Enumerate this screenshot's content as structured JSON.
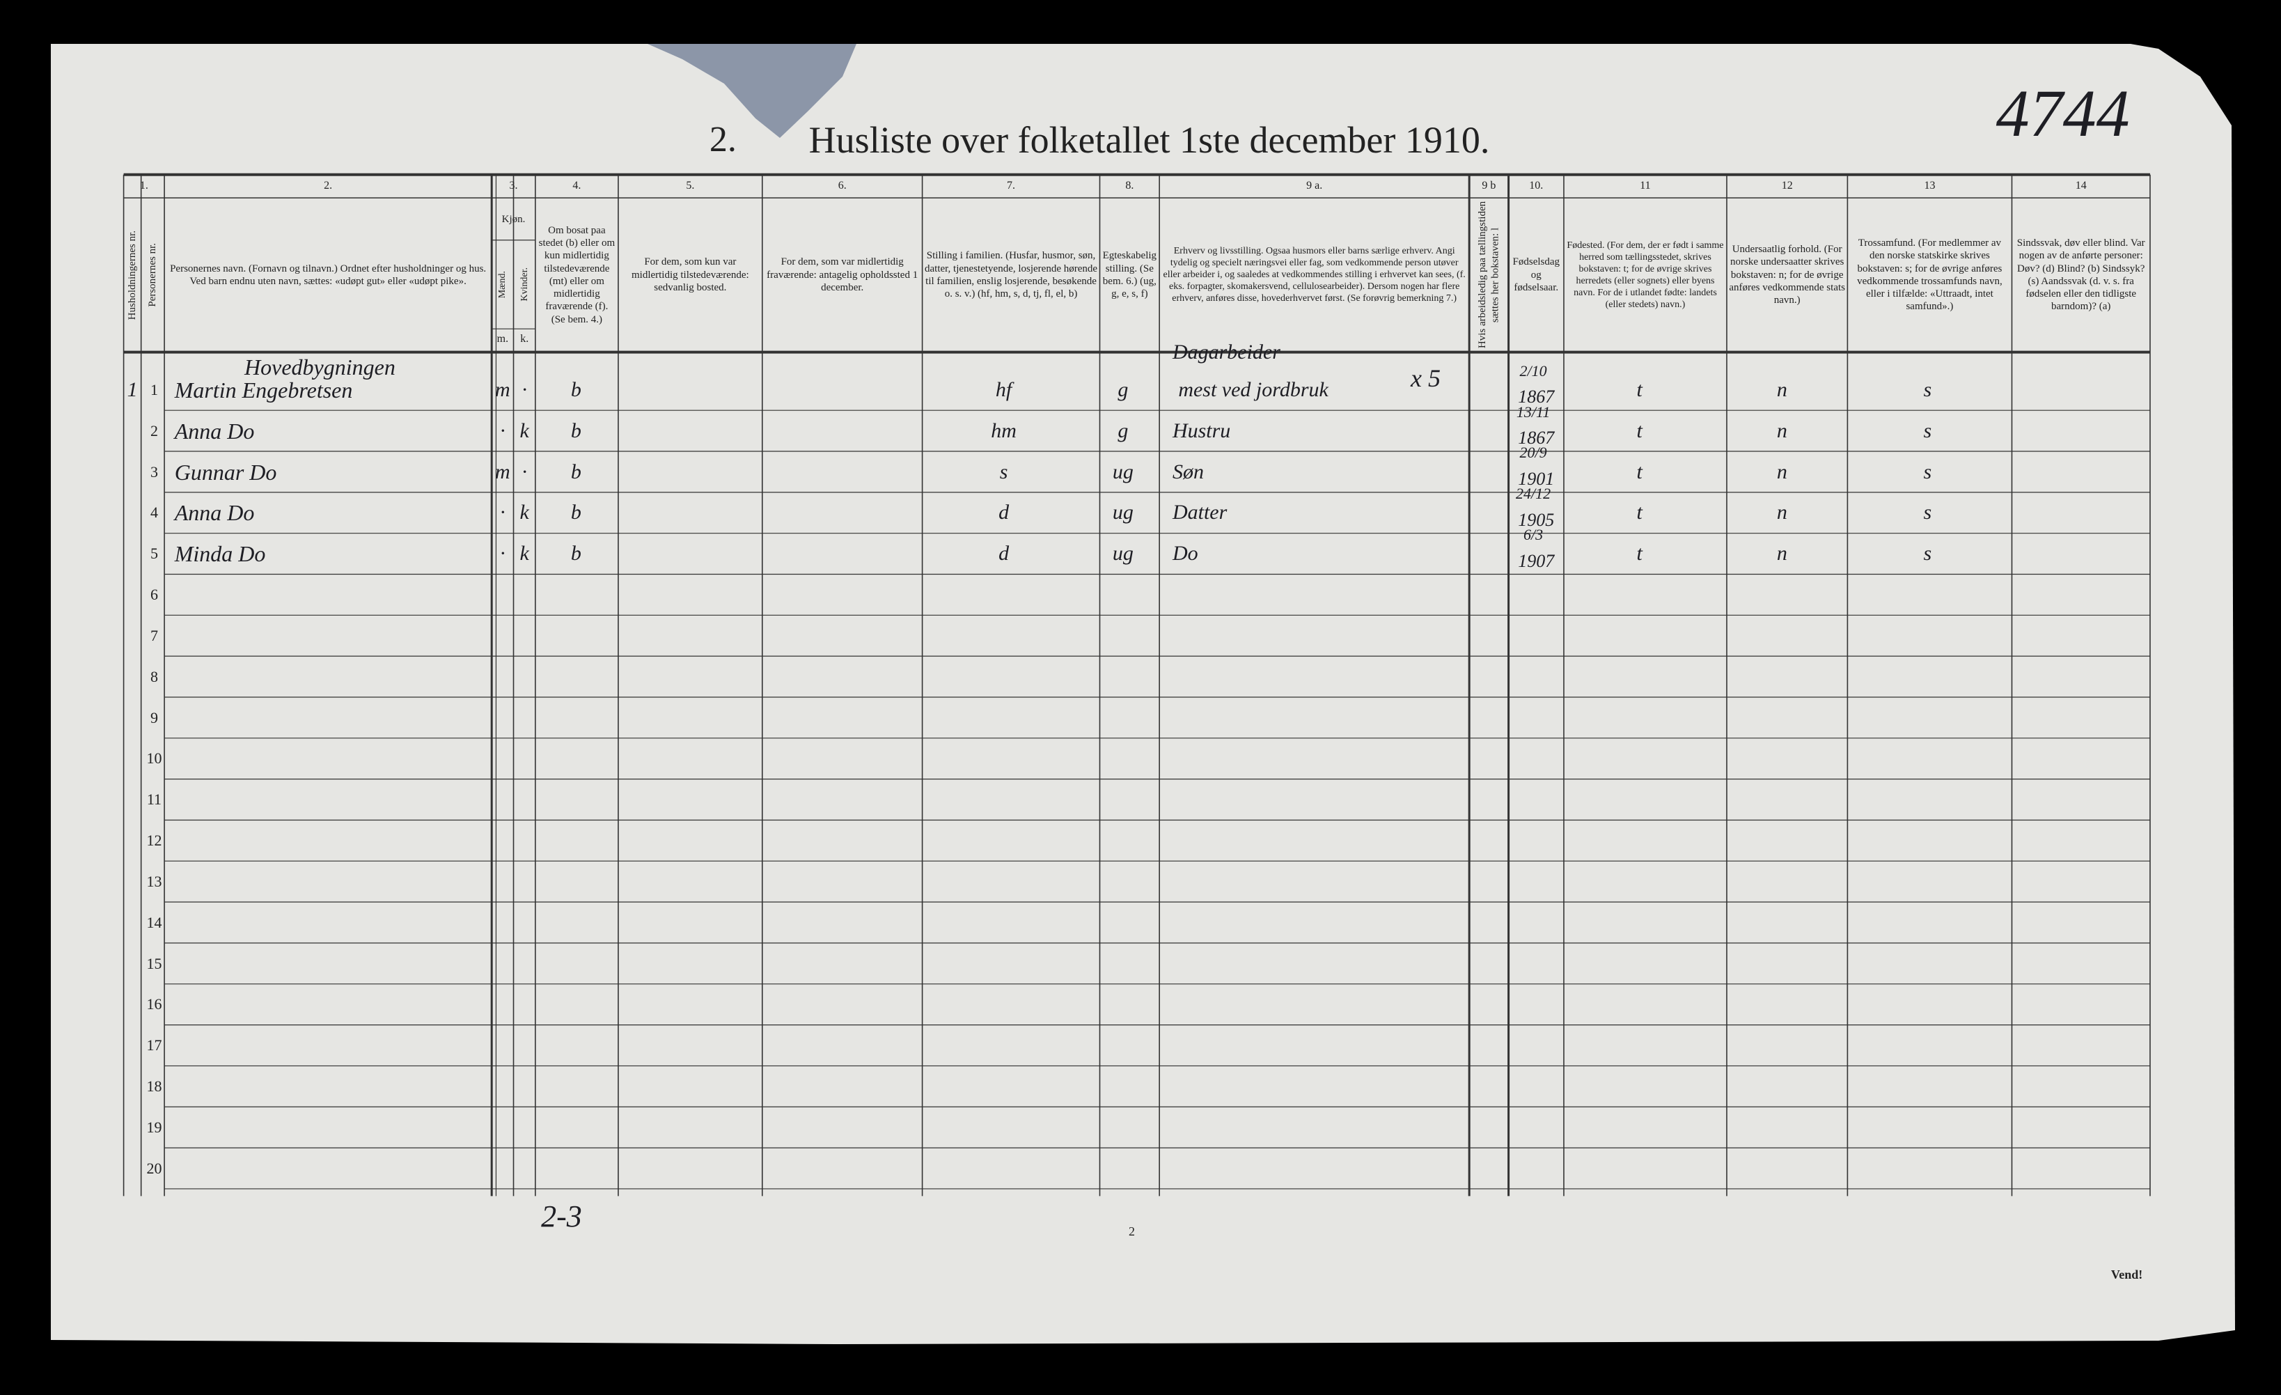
{
  "header": {
    "number": "2.",
    "title": "Husliste over folketallet 1ste december 1910.",
    "archive_note": "4744"
  },
  "table": {
    "column_numbers": [
      "1.",
      "2.",
      "3.",
      "4.",
      "5.",
      "6.",
      "7.",
      "8.",
      "9 a.",
      "9 b",
      "10.",
      "11",
      "12",
      "13",
      "14"
    ],
    "headers": [
      "Husholdningernes nr.",
      "Personernes nr.",
      "Personernes navn. (Fornavn og tilnavn.) Ordnet efter husholdninger og hus. Ved barn endnu uten navn, sættes: «udøpt gut» eller «udøpt pike».",
      "Kjøn.",
      "Om bosat paa stedet (b) eller om kun midlertidig tilstedeværende (mt) eller om midlertidig fraværende (f). (Se bem. 4.)",
      "For dem, som kun var midlertidig tilstedeværende: sedvanlig bosted.",
      "For dem, som var midlertidig fraværende: antagelig opholdssted 1 december.",
      "Stilling i familien. (Husfar, husmor, søn, datter, tjenestetyende, losjerende hørende til familien, enslig losjerende, besøkende o. s. v.) (hf, hm, s, d, tj, fl, el, b)",
      "Egteskabelig stilling. (Se bem. 6.) (ug, g, e, s, f)",
      "Erhverv og livsstilling. Ogsaa husmors eller barns særlige erhverv. Angi tydelig og specielt næringsvei eller fag, som vedkommende person utøver eller arbeider i, og saaledes at vedkommendes stilling i erhvervet kan sees, (f. eks. forpagter, skomakersvend, cellulosearbeider). Dersom nogen har flere erhverv, anføres disse, hovederhvervet først. (Se forøvrig bemerkning 7.)",
      "Hvis arbeidsledig paa tællingstiden sættes her bokstaven: l",
      "Fødselsdag og fødselsaar.",
      "Fødested. (For dem, der er født i samme herred som tællingsstedet, skrives bokstaven: t; for de øvrige skrives herredets (eller sognets) eller byens navn. For de i utlandet fødte: landets (eller stedets) navn.)",
      "Undersaatlig forhold. (For norske undersaatter skrives bokstaven: n; for de øvrige anføres vedkommende stats navn.)",
      "Trossamfund. (For medlemmer av den norske statskirke skrives bokstaven: s; for de øvrige anføres vedkommende trossamfunds navn, eller i tilfælde: «Uttraadt, intet samfund».)",
      "Sindssvak, døv eller blind. Var nogen av de anførte personer: Døv? (d) Blind? (b) Sindssyk? (s) Aandssvak (d. v. s. fra fødselen eller den tidligste barndom)? (a)"
    ],
    "sex_subheaders": [
      "Mænd.",
      "Kvinder."
    ],
    "sex_letters": [
      "m.",
      "k."
    ],
    "building": "Hovedbygningen",
    "rows": [
      {
        "hh": "1",
        "no": "1",
        "name": "Martin Engebretsen",
        "m": "m",
        "k": "·",
        "residence": "b",
        "family_position": "hf",
        "marital_status": "g",
        "occupation": [
          "Dagarbeider",
          "mest ved jordbruk"
        ],
        "birth_date": "2/10",
        "birth_year": "1867",
        "birth_place": "t",
        "citizenship": "n",
        "religion": "s"
      },
      {
        "no": "2",
        "name": "Anna Do",
        "m": "·",
        "k": "k",
        "residence": "b",
        "family_position": "hm",
        "marital_status": "g",
        "occupation": [
          "Hustru"
        ],
        "birth_date": "13/11",
        "birth_year": "1867",
        "birth_place": "t",
        "citizenship": "n",
        "religion": "s"
      },
      {
        "no": "3",
        "name": "Gunnar Do",
        "m": "m",
        "k": "·",
        "residence": "b",
        "family_position": "s",
        "marital_status": "ug",
        "occupation": [
          "Søn"
        ],
        "birth_date": "20/9",
        "birth_year": "1901",
        "birth_place": "t",
        "citizenship": "n",
        "religion": "s"
      },
      {
        "no": "4",
        "name": "Anna Do",
        "m": "·",
        "k": "k",
        "residence": "b",
        "family_position": "d",
        "marital_status": "ug",
        "occupation": [
          "Datter"
        ],
        "birth_date": "24/12",
        "birth_year": "1905",
        "birth_place": "t",
        "citizenship": "n",
        "religion": "s"
      },
      {
        "no": "5",
        "name": "Minda Do",
        "m": "·",
        "k": "k",
        "residence": "b",
        "family_position": "d",
        "marital_status": "ug",
        "occupation": [
          "Do"
        ],
        "birth_date": "6/3",
        "birth_year": "1907",
        "birth_place": "t",
        "citizenship": "n",
        "religion": "s"
      },
      {
        "no": "6"
      },
      {
        "no": "7"
      },
      {
        "no": "8"
      },
      {
        "no": "9"
      },
      {
        "no": "10"
      },
      {
        "no": "11"
      },
      {
        "no": "12"
      },
      {
        "no": "13"
      },
      {
        "no": "14"
      },
      {
        "no": "15"
      },
      {
        "no": "16"
      },
      {
        "no": "17"
      },
      {
        "no": "18"
      },
      {
        "no": "19"
      },
      {
        "no": "20"
      }
    ],
    "margin_note": "x 5"
  },
  "footer": {
    "page": "2",
    "turn": "Vend!",
    "pencil_note": "2-3"
  }
}
